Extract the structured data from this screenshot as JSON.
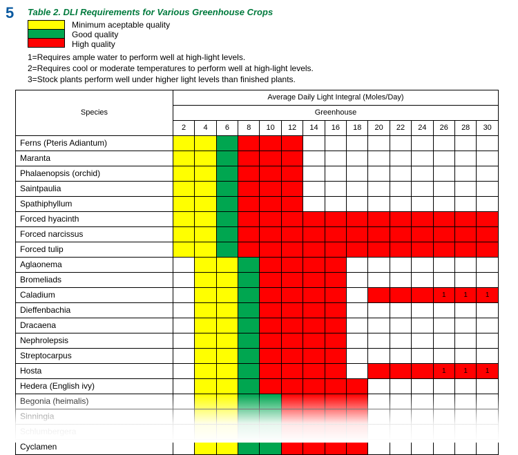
{
  "page_number": "5",
  "title": "Table 2. DLI Requirements for Various Greenhouse Crops",
  "legend": [
    {
      "label": "Minimum aceptable quality",
      "color": "#ffff00"
    },
    {
      "label": "Good quality",
      "color": "#00a650"
    },
    {
      "label": "High quality",
      "color": "#ff0000"
    }
  ],
  "notes": [
    "1=Requires ample water to perform well at high-light levels.",
    "2=Requires cool or moderate temperatures to perform well at high-light levels.",
    "3=Stock plants perform well under higher light levels than finished plants."
  ],
  "header": {
    "species": "Species",
    "group": "Average Daily Light Integral (Moles/Day)",
    "subgroup": "Greenhouse",
    "cols": [
      "2",
      "4",
      "6",
      "8",
      "10",
      "12",
      "14",
      "16",
      "18",
      "20",
      "22",
      "24",
      "26",
      "28",
      "30"
    ]
  },
  "colors": {
    "Y": "#ffff00",
    "G": "#00a650",
    "R": "#ff0000",
    "blank": "#ffffff",
    "border": "#000000"
  },
  "rows": [
    {
      "species": "Ferns (Pteris Adiantum)",
      "cells": [
        "Y",
        "Y",
        "G",
        "R",
        "R",
        "R",
        "",
        "",
        "",
        "",
        "",
        "",
        "",
        "",
        ""
      ]
    },
    {
      "species": "Maranta",
      "cells": [
        "Y",
        "Y",
        "G",
        "R",
        "R",
        "R",
        "",
        "",
        "",
        "",
        "",
        "",
        "",
        "",
        ""
      ]
    },
    {
      "species": "Phalaenopsis (orchid)",
      "cells": [
        "Y",
        "Y",
        "G",
        "R",
        "R",
        "R",
        "",
        "",
        "",
        "",
        "",
        "",
        "",
        "",
        ""
      ]
    },
    {
      "species": "Saintpaulia",
      "cells": [
        "Y",
        "Y",
        "G",
        "R",
        "R",
        "R",
        "",
        "",
        "",
        "",
        "",
        "",
        "",
        "",
        ""
      ]
    },
    {
      "species": "Spathiphyllum",
      "cells": [
        "Y",
        "Y",
        "G",
        "R",
        "R",
        "R",
        "",
        "",
        "",
        "",
        "",
        "",
        "",
        "",
        ""
      ]
    },
    {
      "species": "Forced hyacinth",
      "cells": [
        "Y",
        "Y",
        "G",
        "R",
        "R",
        "R",
        "R",
        "R",
        "R",
        "R",
        "R",
        "R",
        "R",
        "R",
        "R"
      ]
    },
    {
      "species": "Forced narcissus",
      "cells": [
        "Y",
        "Y",
        "G",
        "R",
        "R",
        "R",
        "R",
        "R",
        "R",
        "R",
        "R",
        "R",
        "R",
        "R",
        "R"
      ]
    },
    {
      "species": "Forced tulip",
      "cells": [
        "Y",
        "Y",
        "G",
        "R",
        "R",
        "R",
        "R",
        "R",
        "R",
        "R",
        "R",
        "R",
        "R",
        "R",
        "R"
      ]
    },
    {
      "species": "Aglaonema",
      "cells": [
        "",
        "Y",
        "Y",
        "G",
        "R",
        "R",
        "R",
        "R",
        "",
        "",
        "",
        "",
        "",
        "",
        ""
      ]
    },
    {
      "species": "Bromeliads",
      "cells": [
        "",
        "Y",
        "Y",
        "G",
        "R",
        "R",
        "R",
        "R",
        "",
        "",
        "",
        "",
        "",
        "",
        ""
      ]
    },
    {
      "species": "Caladium",
      "cells": [
        "",
        "Y",
        "Y",
        "G",
        "R",
        "R",
        "R",
        "R",
        "",
        "R",
        "R",
        "R",
        "R",
        "R",
        "R"
      ],
      "marks": {
        "12": "1",
        "13": "1",
        "14": "1"
      }
    },
    {
      "species": "Dieffenbachia",
      "cells": [
        "",
        "Y",
        "Y",
        "G",
        "R",
        "R",
        "R",
        "R",
        "",
        "",
        "",
        "",
        "",
        "",
        ""
      ]
    },
    {
      "species": "Dracaena",
      "cells": [
        "",
        "Y",
        "Y",
        "G",
        "R",
        "R",
        "R",
        "R",
        "",
        "",
        "",
        "",
        "",
        "",
        ""
      ]
    },
    {
      "species": "Nephrolepsis",
      "cells": [
        "",
        "Y",
        "Y",
        "G",
        "R",
        "R",
        "R",
        "R",
        "",
        "",
        "",
        "",
        "",
        "",
        ""
      ]
    },
    {
      "species": "Streptocarpus",
      "cells": [
        "",
        "Y",
        "Y",
        "G",
        "R",
        "R",
        "R",
        "R",
        "",
        "",
        "",
        "",
        "",
        "",
        ""
      ]
    },
    {
      "species": "Hosta",
      "cells": [
        "",
        "Y",
        "Y",
        "G",
        "R",
        "R",
        "R",
        "R",
        "",
        "R",
        "R",
        "R",
        "R",
        "R",
        "R"
      ],
      "marks": {
        "12": "1",
        "13": "1",
        "14": "1"
      }
    },
    {
      "species": "Hedera (English ivy)",
      "cells": [
        "",
        "Y",
        "Y",
        "G",
        "R",
        "R",
        "R",
        "R",
        "R",
        "",
        "",
        "",
        "",
        "",
        ""
      ]
    },
    {
      "species": "Begonia (heimalis)",
      "cells": [
        "",
        "Y",
        "Y",
        "G",
        "G",
        "R",
        "R",
        "R",
        "R",
        "",
        "",
        "",
        "",
        "",
        ""
      ]
    },
    {
      "species": "Sinningia",
      "cells": [
        "",
        "Y",
        "Y",
        "G",
        "G",
        "R",
        "R",
        "R",
        "R",
        "",
        "",
        "",
        "",
        "",
        ""
      ]
    },
    {
      "species": "Schlumbergera",
      "cells": [
        "",
        "Y",
        "Y",
        "G",
        "G",
        "R",
        "R",
        "R",
        "R",
        "",
        "",
        "",
        "",
        "",
        ""
      ]
    },
    {
      "species": "Cyclamen",
      "cells": [
        "",
        "Y",
        "Y",
        "G",
        "G",
        "R",
        "R",
        "R",
        "R",
        "",
        "",
        "",
        "",
        "",
        ""
      ]
    }
  ]
}
